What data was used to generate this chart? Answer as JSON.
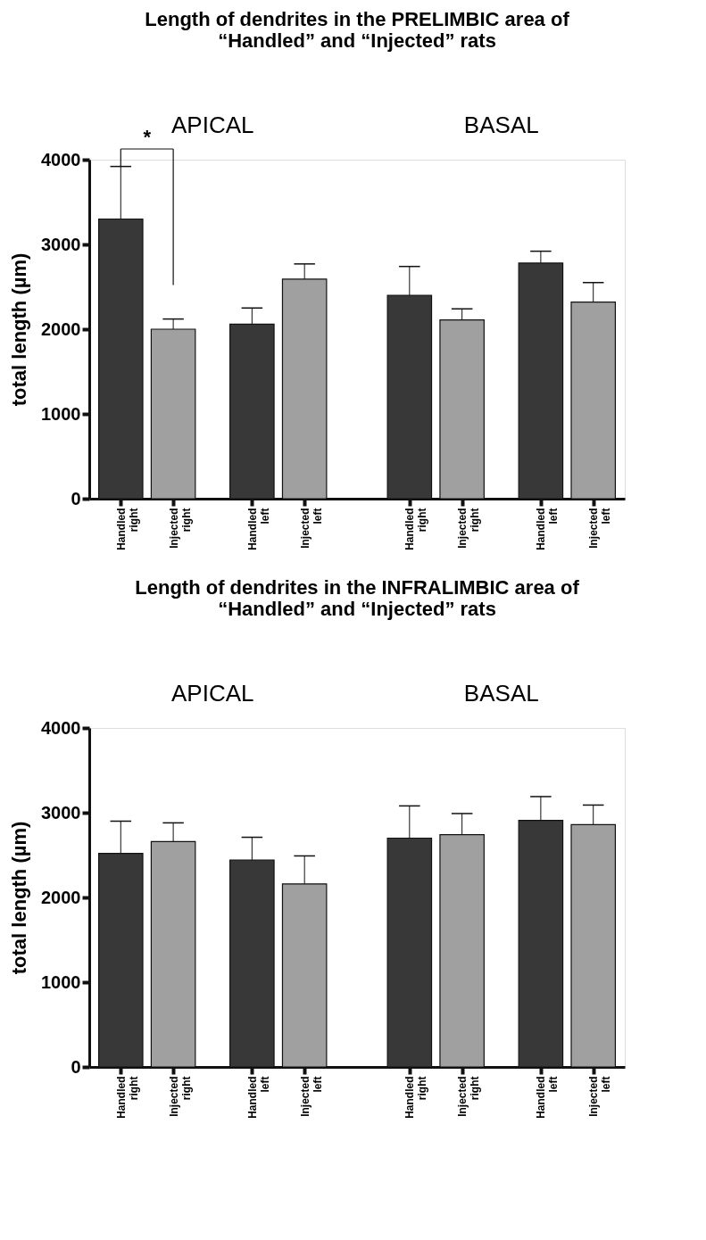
{
  "chart_data": [
    {
      "type": "bar",
      "title": "Length of dendrites in the PRELIMBIC area of\n“Handled” and “Injected” rats",
      "ylabel": "total length (µm)",
      "categories": [
        "Handled right",
        "Injected right",
        "Handled left",
        "Injected left",
        "Handled right",
        "Injected right",
        "Handled left",
        "Injected left"
      ],
      "values": [
        3300,
        2000,
        2060,
        2590,
        2400,
        2110,
        2780,
        2320
      ],
      "colors": [
        "#383838",
        "#a0a0a0",
        "#383838",
        "#a0a0a0",
        "#383838",
        "#a0a0a0",
        "#383838",
        "#a0a0a0"
      ],
      "errors": [
        [
          3300,
          3920
        ],
        [
          2000,
          2120
        ],
        [
          2060,
          2250
        ],
        [
          2590,
          2770
        ],
        [
          2400,
          2740
        ],
        [
          2110,
          2240
        ],
        [
          2780,
          2920
        ],
        [
          2320,
          2550
        ]
      ],
      "ylim": [
        0,
        4000
      ],
      "yticks": [
        0,
        1000,
        2000,
        3000,
        4000
      ],
      "grid": false,
      "annotations": [
        "APICAL",
        "BASAL",
        "*"
      ]
    },
    {
      "type": "bar",
      "title": "Length of dendrites in the INFRALIMBIC area of\n“Handled” and “Injected” rats",
      "ylabel": "total length (µm)",
      "categories": [
        "Handled right",
        "Injected right",
        "Handled left",
        "Injected left",
        "Handled right",
        "Injected right",
        "Handled left",
        "Injected left"
      ],
      "values": [
        2520,
        2660,
        2440,
        2160,
        2700,
        2740,
        2910,
        2860
      ],
      "colors": [
        "#383838",
        "#a0a0a0",
        "#383838",
        "#a0a0a0",
        "#383838",
        "#a0a0a0",
        "#383838",
        "#a0a0a0"
      ],
      "errors": [
        [
          2520,
          2900
        ],
        [
          2660,
          2880
        ],
        [
          2440,
          2710
        ],
        [
          2160,
          2490
        ],
        [
          2700,
          3080
        ],
        [
          2740,
          2990
        ],
        [
          2910,
          3190
        ],
        [
          2860,
          3090
        ]
      ],
      "ylim": [
        0,
        4000
      ],
      "yticks": [
        0,
        1000,
        2000,
        3000,
        4000
      ],
      "grid": false,
      "annotations": [
        "APICAL",
        "BASAL"
      ]
    }
  ]
}
